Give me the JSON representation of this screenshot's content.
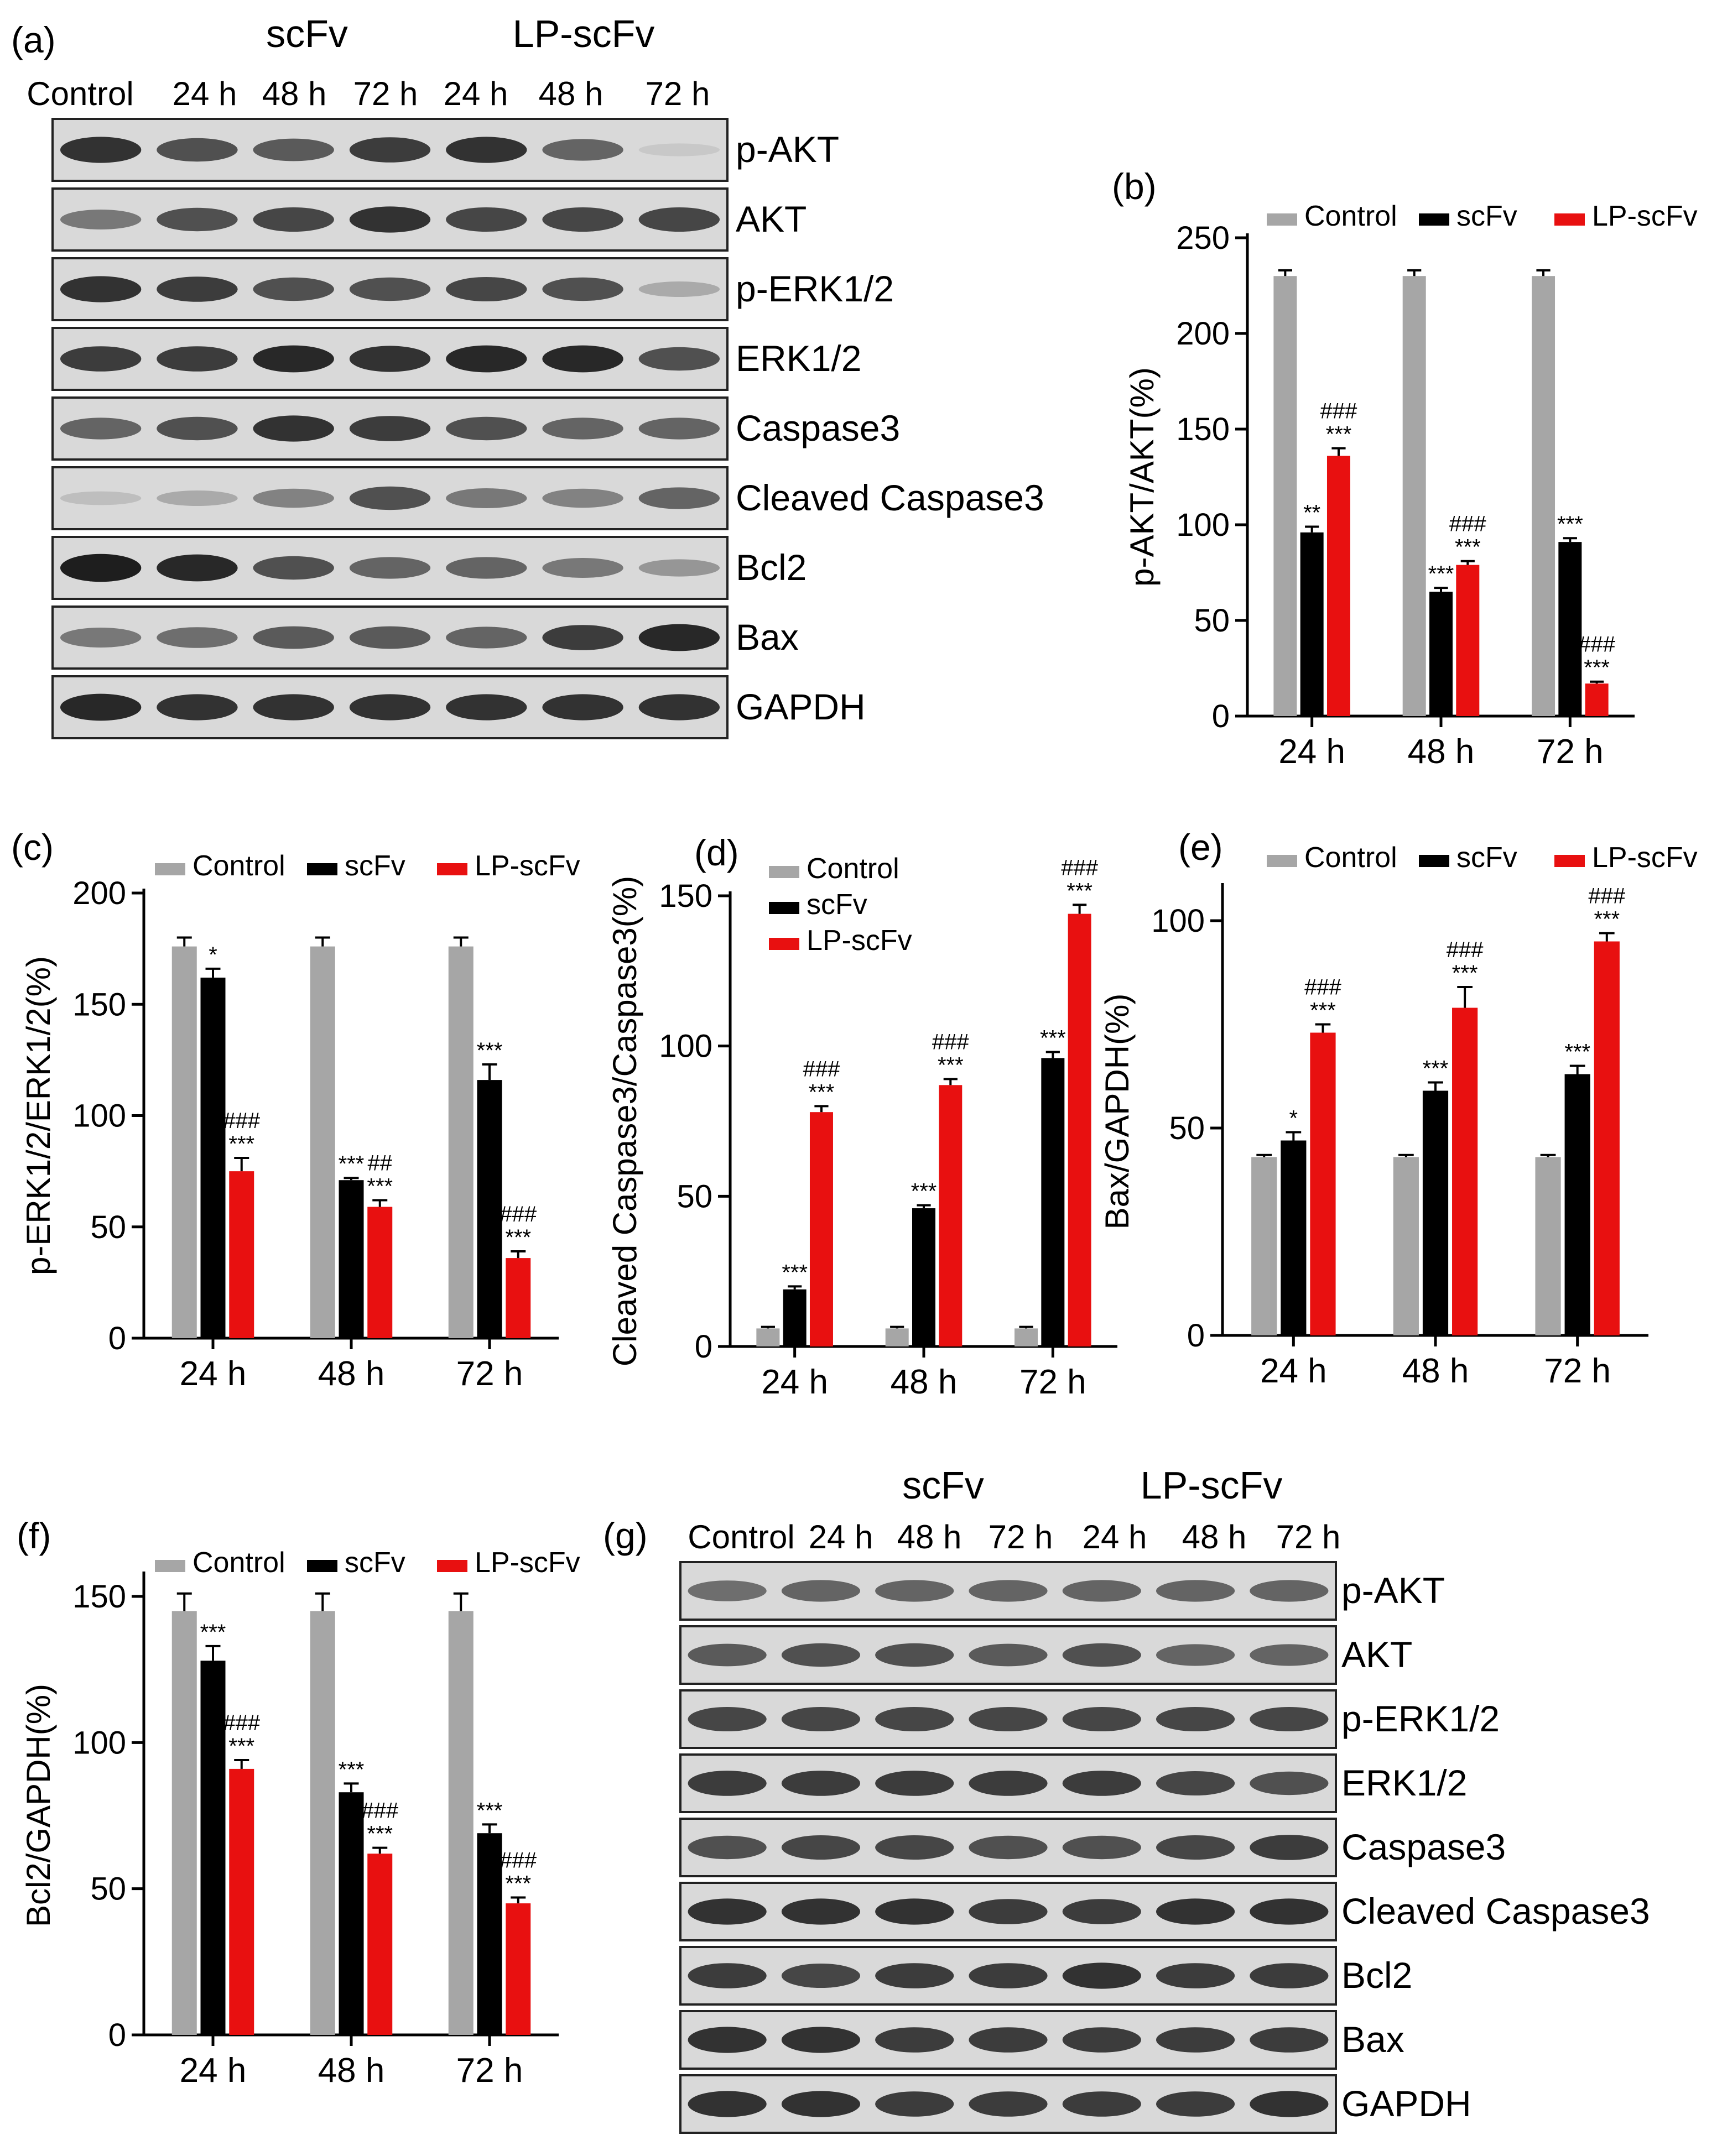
{
  "colors": {
    "Control": "#a6a6a6",
    "scFv": "#000000",
    "LP-scFv": "#e81010",
    "axis": "#000000"
  },
  "panel_labels": [
    "(a)",
    "(b)",
    "(c)",
    "(d)",
    "(e)",
    "(f)",
    "(g)"
  ],
  "blots": [
    {
      "panel": "(a)",
      "group_headers": [
        "scFv",
        "LP-scFv"
      ],
      "lanes": [
        "Control",
        "24 h",
        "48 h",
        "72 h",
        "24 h",
        "48 h",
        "72 h"
      ],
      "rows": [
        {
          "label": "p-AKT",
          "intensity": [
            0.85,
            0.7,
            0.65,
            0.8,
            0.85,
            0.6,
            0.1
          ]
        },
        {
          "label": "AKT",
          "intensity": [
            0.5,
            0.7,
            0.75,
            0.85,
            0.75,
            0.75,
            0.75
          ]
        },
        {
          "label": "p-ERK1/2",
          "intensity": [
            0.85,
            0.8,
            0.7,
            0.7,
            0.75,
            0.7,
            0.25
          ]
        },
        {
          "label": "ERK1/2",
          "intensity": [
            0.8,
            0.8,
            0.9,
            0.85,
            0.9,
            0.9,
            0.7
          ]
        },
        {
          "label": "Caspase3",
          "intensity": [
            0.6,
            0.7,
            0.85,
            0.8,
            0.7,
            0.6,
            0.6
          ]
        },
        {
          "label": "Cleaved  Caspase3",
          "intensity": [
            0.15,
            0.25,
            0.45,
            0.7,
            0.5,
            0.45,
            0.6
          ]
        },
        {
          "label": "Bcl2",
          "intensity": [
            0.95,
            0.9,
            0.7,
            0.6,
            0.6,
            0.5,
            0.35
          ]
        },
        {
          "label": "Bax",
          "intensity": [
            0.5,
            0.55,
            0.65,
            0.65,
            0.6,
            0.8,
            0.9
          ]
        },
        {
          "label": "GAPDH",
          "intensity": [
            0.9,
            0.85,
            0.85,
            0.85,
            0.85,
            0.85,
            0.85
          ]
        }
      ]
    },
    {
      "panel": "(g)",
      "group_headers": [
        "scFv",
        "LP-scFv"
      ],
      "lanes": [
        "Control",
        "24 h",
        "48 h",
        "72 h",
        "24 h",
        "48 h",
        "72 h"
      ],
      "rows": [
        {
          "label": "p-AKT",
          "intensity": [
            0.55,
            0.6,
            0.6,
            0.6,
            0.6,
            0.6,
            0.6
          ]
        },
        {
          "label": "AKT",
          "intensity": [
            0.65,
            0.7,
            0.7,
            0.65,
            0.7,
            0.6,
            0.6
          ]
        },
        {
          "label": "p-ERK1/2",
          "intensity": [
            0.75,
            0.75,
            0.75,
            0.75,
            0.75,
            0.75,
            0.75
          ]
        },
        {
          "label": "ERK1/2",
          "intensity": [
            0.8,
            0.8,
            0.8,
            0.8,
            0.8,
            0.75,
            0.7
          ]
        },
        {
          "label": "Caspase3",
          "intensity": [
            0.7,
            0.75,
            0.75,
            0.7,
            0.7,
            0.75,
            0.8
          ]
        },
        {
          "label": "Cleaved  Caspase3",
          "intensity": [
            0.85,
            0.85,
            0.85,
            0.8,
            0.8,
            0.85,
            0.85
          ]
        },
        {
          "label": "Bcl2",
          "intensity": [
            0.8,
            0.75,
            0.8,
            0.8,
            0.85,
            0.8,
            0.8
          ]
        },
        {
          "label": "Bax",
          "intensity": [
            0.85,
            0.85,
            0.8,
            0.8,
            0.8,
            0.8,
            0.8
          ]
        },
        {
          "label": "GAPDH",
          "intensity": [
            0.85,
            0.85,
            0.8,
            0.8,
            0.8,
            0.8,
            0.85
          ]
        }
      ]
    }
  ],
  "chart_data": [
    {
      "panel": "(b)",
      "type": "bar",
      "categories": [
        "24 h",
        "48 h",
        "72 h"
      ],
      "ylabel": "p-AKT/AKT(%)",
      "ylim": [
        0,
        250
      ],
      "yticks": [
        0,
        50,
        100,
        150,
        200,
        250
      ],
      "legend": "top",
      "series": [
        {
          "name": "Control",
          "values": [
            230,
            230,
            230
          ],
          "errors": [
            3,
            3,
            3
          ],
          "marks": [
            "",
            "",
            ""
          ]
        },
        {
          "name": "scFv",
          "values": [
            96,
            65,
            91
          ],
          "errors": [
            3,
            2,
            2
          ],
          "marks": [
            "**",
            "***",
            "***"
          ]
        },
        {
          "name": "LP-scFv",
          "values": [
            136,
            79,
            17
          ],
          "errors": [
            4,
            2,
            1
          ],
          "marks": [
            "###\n***",
            "###\n***",
            "###\n***"
          ]
        }
      ]
    },
    {
      "panel": "(c)",
      "type": "bar",
      "categories": [
        "24 h",
        "48 h",
        "72 h"
      ],
      "ylabel": "p-ERK1/2/ERK1/2(%)",
      "ylim": [
        0,
        200
      ],
      "yticks": [
        0,
        50,
        100,
        150,
        200
      ],
      "legend": "top",
      "series": [
        {
          "name": "Control",
          "values": [
            176,
            176,
            176
          ],
          "errors": [
            4,
            4,
            4
          ],
          "marks": [
            "",
            "",
            ""
          ]
        },
        {
          "name": "scFv",
          "values": [
            162,
            71,
            116
          ],
          "errors": [
            4,
            1,
            7
          ],
          "marks": [
            "*",
            "***",
            "***"
          ]
        },
        {
          "name": "LP-scFv",
          "values": [
            75,
            59,
            36
          ],
          "errors": [
            6,
            3,
            3
          ],
          "marks": [
            "###\n***",
            "##\n***",
            "###\n***"
          ]
        }
      ]
    },
    {
      "panel": "(d)",
      "type": "bar",
      "categories": [
        "24 h",
        "48 h",
        "72 h"
      ],
      "ylabel": "Cleaved Caspase3/Caspase3(%)",
      "ylim": [
        0,
        150
      ],
      "yticks": [
        0,
        50,
        100,
        150
      ],
      "legend": "top-left",
      "series": [
        {
          "name": "Control",
          "values": [
            6,
            6,
            6
          ],
          "errors": [
            0.5,
            0.5,
            0.5
          ],
          "marks": [
            "",
            "",
            ""
          ]
        },
        {
          "name": "scFv",
          "values": [
            19,
            46,
            96
          ],
          "errors": [
            1,
            1,
            2
          ],
          "marks": [
            "***",
            "***",
            "***"
          ]
        },
        {
          "name": "LP-scFv",
          "values": [
            78,
            87,
            144
          ],
          "errors": [
            2,
            2,
            3
          ],
          "marks": [
            "###\n***",
            "###\n***",
            "###\n***"
          ]
        }
      ]
    },
    {
      "panel": "(e)",
      "type": "bar",
      "categories": [
        "24 h",
        "48 h",
        "72 h"
      ],
      "ylabel": "Bax/GAPDH(%)",
      "ylim": [
        0,
        108
      ],
      "yticks": [
        0,
        50,
        100
      ],
      "legend": "top",
      "series": [
        {
          "name": "Control",
          "values": [
            43,
            43,
            43
          ],
          "errors": [
            0.5,
            0.5,
            0.5
          ],
          "marks": [
            "",
            "",
            ""
          ]
        },
        {
          "name": "scFv",
          "values": [
            47,
            59,
            63
          ],
          "errors": [
            2,
            2,
            2
          ],
          "marks": [
            "*",
            "***",
            "***"
          ]
        },
        {
          "name": "LP-scFv",
          "values": [
            73,
            79,
            95
          ],
          "errors": [
            2,
            5,
            2
          ],
          "marks": [
            "###\n***",
            "###\n***",
            "###\n***"
          ]
        }
      ]
    },
    {
      "panel": "(f)",
      "type": "bar",
      "categories": [
        "24 h",
        "48 h",
        "72 h"
      ],
      "ylabel": "Bcl2/GAPDH(%)",
      "ylim": [
        0,
        157
      ],
      "yticks": [
        0,
        50,
        100,
        150
      ],
      "legend": "top",
      "series": [
        {
          "name": "Control",
          "values": [
            145,
            145,
            145
          ],
          "errors": [
            6,
            6,
            6
          ],
          "marks": [
            "",
            "",
            ""
          ]
        },
        {
          "name": "scFv",
          "values": [
            128,
            83,
            69
          ],
          "errors": [
            5,
            3,
            3
          ],
          "marks": [
            "***",
            "***",
            "***"
          ]
        },
        {
          "name": "LP-scFv",
          "values": [
            91,
            62,
            45
          ],
          "errors": [
            3,
            2,
            2
          ],
          "marks": [
            "###\n***",
            "###\n***",
            "###\n***"
          ]
        }
      ]
    }
  ]
}
